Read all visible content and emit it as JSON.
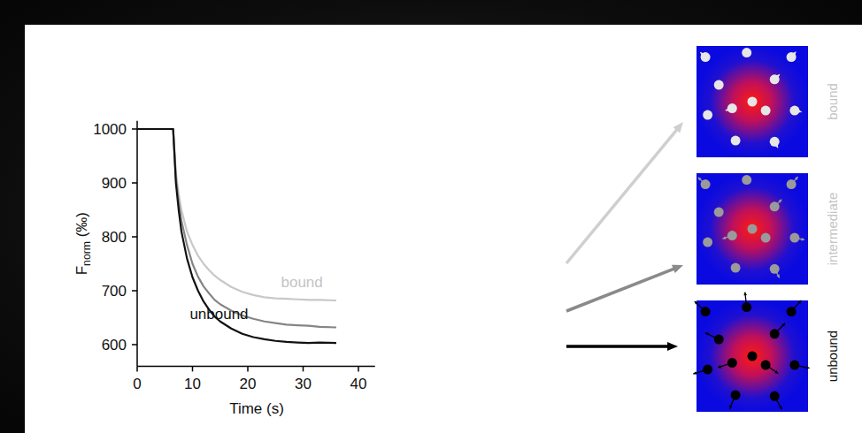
{
  "chart_data": {
    "type": "line",
    "x": [
      0,
      2,
      4,
      6,
      6.5,
      7,
      7.5,
      8,
      9,
      10,
      11,
      12,
      13,
      14,
      15,
      17,
      19,
      21,
      23,
      25,
      27,
      29,
      31,
      33,
      36
    ],
    "series": [
      {
        "name": "unbound",
        "color": "#111111",
        "values": [
          1000,
          1000,
          1000,
          1000,
          1000,
          900,
          850,
          810,
          760,
          725,
          700,
          680,
          665,
          652,
          643,
          630,
          620,
          614,
          610,
          607,
          605,
          604,
          603,
          604,
          603
        ]
      },
      {
        "name": "intermediate",
        "color": "#858585",
        "values": [
          1000,
          1000,
          1000,
          1000,
          1000,
          910,
          865,
          830,
          785,
          750,
          726,
          708,
          695,
          683,
          675,
          663,
          654,
          648,
          643,
          640,
          637,
          636,
          635,
          633,
          632
        ]
      },
      {
        "name": "bound",
        "color": "#c8c8c8",
        "values": [
          1000,
          1000,
          1000,
          1000,
          1000,
          920,
          880,
          850,
          810,
          785,
          765,
          750,
          738,
          728,
          720,
          707,
          698,
          692,
          688,
          686,
          685,
          684,
          683,
          683,
          682
        ]
      }
    ],
    "xlim": [
      0,
      43
    ],
    "ylim": [
      560,
      1015
    ],
    "xticks": [
      0,
      10,
      20,
      30,
      40
    ],
    "yticks": [
      600,
      700,
      800,
      900,
      1000
    ],
    "xlabel": "Time (s)",
    "ylabel": "Fnorm (‰)",
    "grid": false,
    "annotations": [
      {
        "text": "bound",
        "x": 26,
        "y": 706
      },
      {
        "text": "unbound",
        "x": 9.5,
        "y": 648
      }
    ]
  }
}
